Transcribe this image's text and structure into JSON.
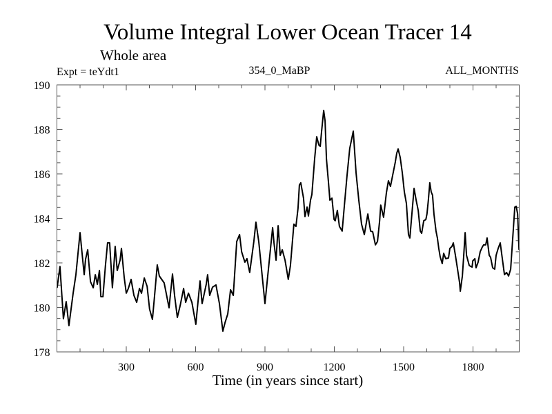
{
  "chart_data": {
    "type": "line",
    "title": "Volume Integral Lower Ocean Tracer 14",
    "subtitle": "Whole area",
    "annotations": {
      "left": "Expt = teYdt1",
      "center": "354_0_MaBP",
      "right": "ALL_MONTHS"
    },
    "xlabel": "Time (in years since start)",
    "ylabel": "",
    "xlim": [
      0,
      2000
    ],
    "ylim": [
      178,
      190
    ],
    "x_major_ticks": [
      300,
      600,
      900,
      1200,
      1500,
      1800
    ],
    "x_tick_labels": [
      "300",
      "600",
      "900",
      "1200",
      "1500",
      "1800"
    ],
    "x_minor_step": 100,
    "y_major_ticks": [
      178,
      180,
      182,
      184,
      186,
      188,
      190
    ],
    "y_tick_labels": [
      "178",
      "180",
      "182",
      "184",
      "186",
      "188",
      "190"
    ],
    "y_minor_step": 0.5,
    "grid": false,
    "legend": "none",
    "line_color": "#000000",
    "series": [
      {
        "name": "Tracer 14",
        "x": [
          1,
          13,
          28,
          40,
          52,
          70,
          82,
          100,
          118,
          124,
          133,
          145,
          157,
          166,
          175,
          184,
          190,
          199,
          210,
          219,
          228,
          240,
          252,
          261,
          273,
          279,
          291,
          300,
          309,
          321,
          333,
          345,
          357,
          366,
          378,
          390,
          401,
          413,
          422,
          434,
          443,
          464,
          470,
          485,
          500,
          509,
          521,
          533,
          548,
          557,
          569,
          584,
          601,
          619,
          628,
          646,
          652,
          661,
          673,
          688,
          703,
          718,
          727,
          739,
          751,
          763,
          778,
          790,
          799,
          813,
          822,
          834,
          852,
          861,
          873,
          888,
          900,
          912,
          933,
          939,
          948,
          957,
          966,
          975,
          987,
          1001,
          1010,
          1025,
          1034,
          1043,
          1049,
          1055,
          1067,
          1073,
          1082,
          1088,
          1097,
          1103,
          1115,
          1124,
          1133,
          1139,
          1145,
          1154,
          1160,
          1166,
          1175,
          1181,
          1190,
          1199,
          1204,
          1213,
          1222,
          1234,
          1243,
          1255,
          1267,
          1282,
          1294,
          1306,
          1318,
          1330,
          1345,
          1357,
          1366,
          1378,
          1387,
          1396,
          1401,
          1413,
          1425,
          1434,
          1443,
          1452,
          1464,
          1470,
          1476,
          1485,
          1494,
          1503,
          1512,
          1521,
          1527,
          1533,
          1545,
          1554,
          1563,
          1572,
          1578,
          1587,
          1596,
          1601,
          1607,
          1613,
          1619,
          1625,
          1631,
          1640,
          1646,
          1652,
          1658,
          1667,
          1673,
          1682,
          1694,
          1700,
          1709,
          1715,
          1724,
          1733,
          1742,
          1745,
          1754,
          1760,
          1766,
          1772,
          1784,
          1796,
          1799,
          1808,
          1813,
          1822,
          1831,
          1840,
          1846,
          1855,
          1861,
          1870,
          1876,
          1885,
          1894,
          1900,
          1909,
          1918,
          1927,
          1936,
          1945,
          1954,
          1963,
          1972,
          1981,
          1987,
          1993,
          1999
        ],
        "y": [
          180.88,
          181.84,
          179.49,
          180.26,
          179.18,
          180.64,
          181.47,
          183.36,
          181.47,
          182.16,
          182.59,
          181.16,
          180.88,
          181.47,
          181.04,
          181.66,
          180.48,
          180.48,
          181.88,
          182.9,
          182.9,
          180.88,
          182.74,
          181.66,
          182.12,
          182.65,
          181.35,
          180.64,
          180.85,
          181.26,
          180.54,
          180.23,
          180.85,
          180.64,
          181.32,
          180.95,
          179.92,
          179.46,
          180.48,
          181.91,
          181.41,
          181.1,
          180.79,
          179.98,
          181.5,
          180.54,
          179.55,
          180.08,
          180.85,
          180.23,
          180.64,
          180.23,
          179.24,
          181.19,
          180.17,
          181.04,
          181.47,
          180.54,
          180.91,
          181.01,
          180.17,
          178.93,
          179.3,
          179.71,
          180.79,
          180.54,
          182.96,
          183.27,
          182.5,
          182.03,
          182.19,
          181.57,
          182.96,
          183.83,
          182.96,
          181.41,
          180.17,
          181.41,
          183.58,
          182.9,
          182.12,
          183.67,
          182.34,
          182.59,
          182.12,
          181.26,
          181.88,
          183.74,
          183.64,
          184.45,
          185.5,
          185.6,
          184.91,
          184.08,
          184.51,
          184.11,
          184.82,
          185.07,
          186.68,
          187.67,
          187.3,
          187.24,
          187.92,
          188.85,
          188.39,
          186.68,
          185.6,
          184.82,
          184.91,
          183.95,
          183.89,
          184.36,
          183.64,
          183.43,
          184.51,
          185.91,
          187.15,
          187.92,
          186.06,
          184.82,
          183.74,
          183.27,
          184.2,
          183.43,
          183.4,
          182.81,
          182.96,
          183.89,
          184.6,
          184.05,
          185.13,
          185.69,
          185.44,
          185.91,
          186.53,
          186.93,
          187.12,
          186.74,
          186.06,
          185.19,
          184.67,
          183.27,
          183.12,
          183.89,
          185.35,
          184.82,
          184.36,
          183.43,
          183.33,
          183.89,
          183.95,
          184.2,
          184.82,
          185.6,
          185.19,
          185.04,
          184.2,
          183.43,
          183.12,
          182.65,
          182.28,
          181.97,
          182.43,
          182.19,
          182.22,
          182.65,
          182.74,
          182.9,
          182.34,
          181.72,
          181.1,
          180.73,
          181.41,
          182.34,
          183.36,
          182.34,
          181.88,
          181.81,
          182.09,
          182.19,
          181.78,
          182.03,
          182.5,
          182.71,
          182.81,
          182.81,
          183.12,
          182.34,
          182.25,
          181.78,
          181.72,
          182.34,
          182.65,
          182.9,
          182.19,
          181.47,
          181.57,
          181.41,
          181.72,
          183.12,
          184.51,
          184.54,
          184.2,
          182.59
        ]
      }
    ]
  }
}
